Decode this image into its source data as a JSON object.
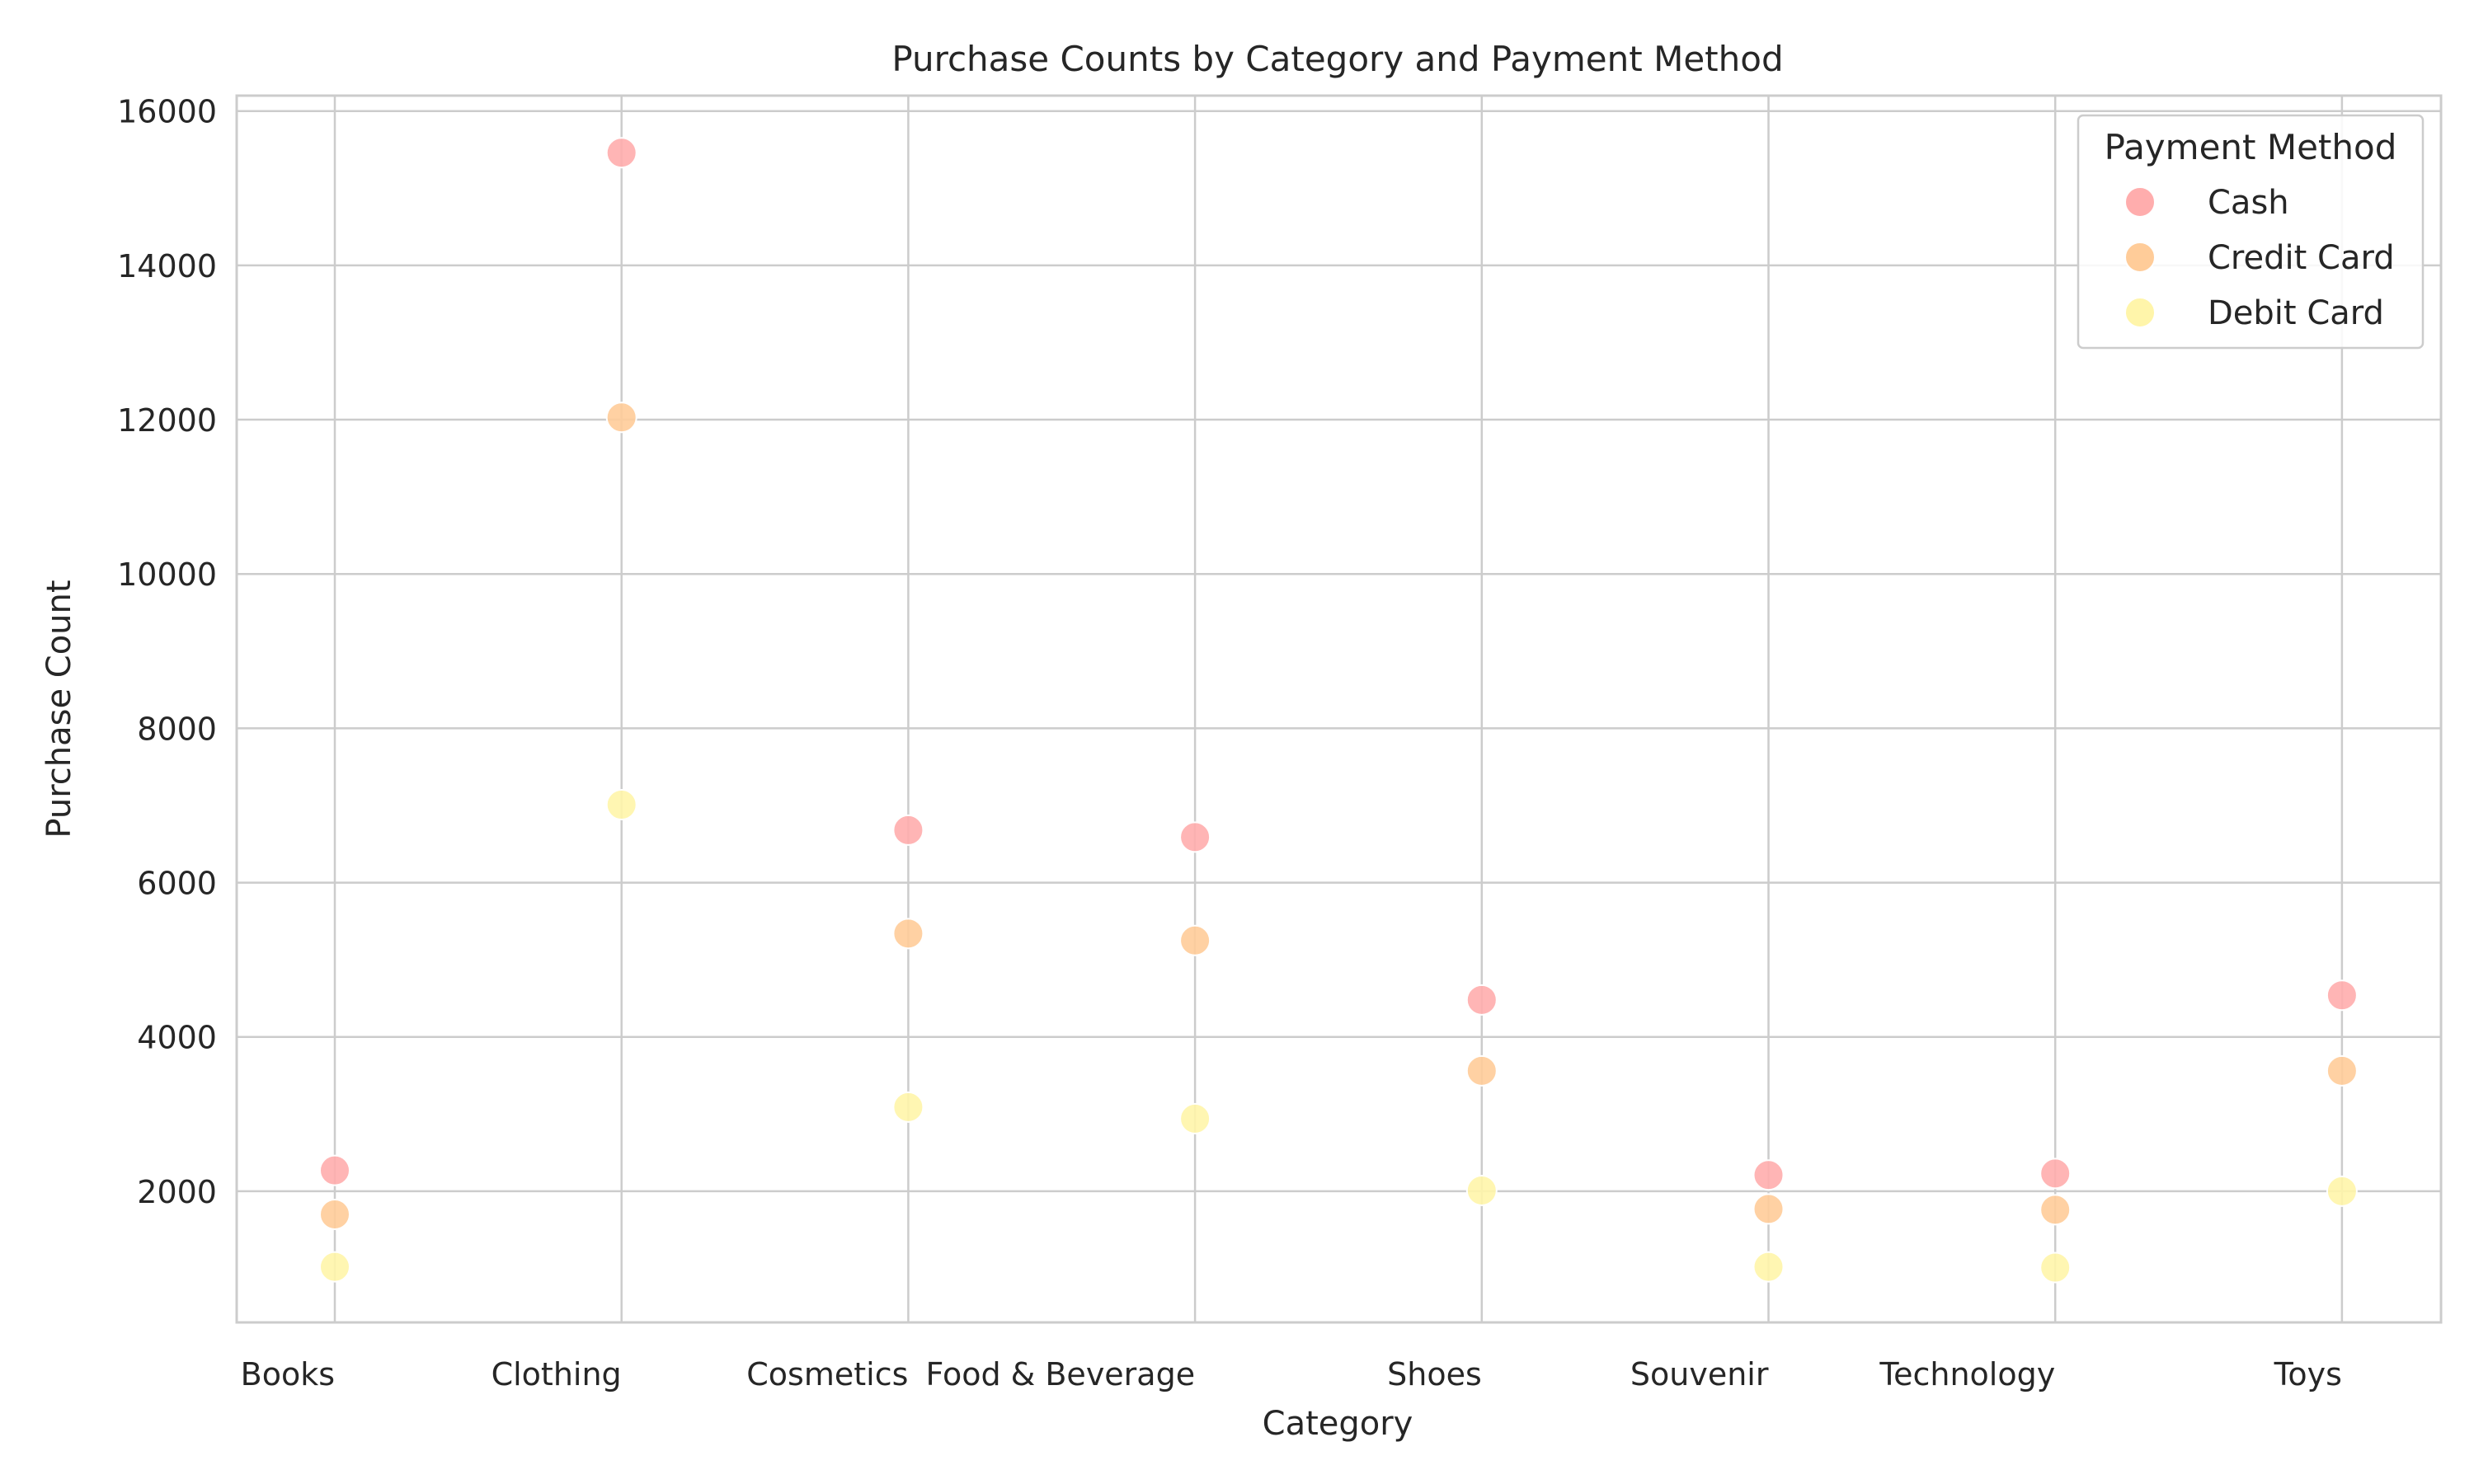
{
  "chart_data": {
    "type": "scatter",
    "title": "Purchase Counts by Category and Payment Method",
    "xlabel": "Category",
    "ylabel": "Purchase Count",
    "categories": [
      "Books",
      "Clothing",
      "Cosmetics",
      "Food & Beverage",
      "Shoes",
      "Souvenir",
      "Technology",
      "Toys"
    ],
    "ylim": [
      300,
      16200
    ],
    "yticks": [
      2000,
      4000,
      6000,
      8000,
      10000,
      12000,
      14000,
      16000
    ],
    "grid": true,
    "legend": {
      "title": "Payment Method",
      "placement": "top-right"
    },
    "series": [
      {
        "name": "Cash",
        "color": "#ffadad",
        "values": [
          2270,
          15460,
          6680,
          6590,
          4480,
          2210,
          2230,
          4540
        ]
      },
      {
        "name": "Credit Card",
        "color": "#ffcc99",
        "values": [
          1700,
          12030,
          5340,
          5250,
          3560,
          1770,
          1760,
          3560
        ]
      },
      {
        "name": "Debit Card",
        "color": "#fff5aa",
        "values": [
          1020,
          7010,
          3090,
          2940,
          2010,
          1020,
          1010,
          2000
        ]
      }
    ]
  }
}
